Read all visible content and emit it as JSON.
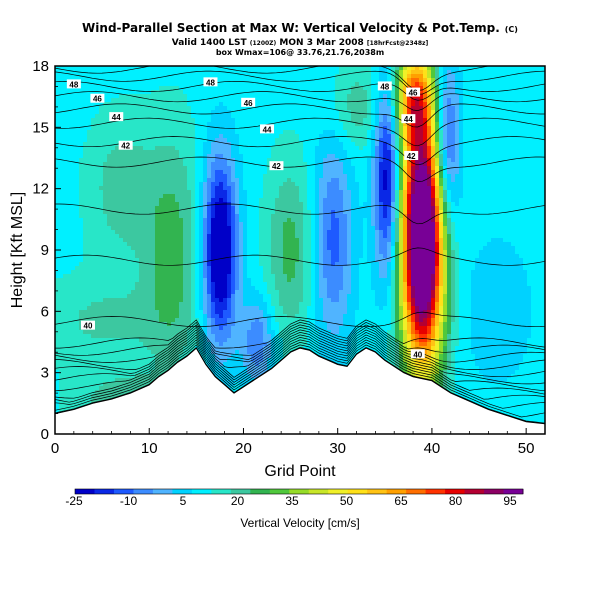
{
  "header": {
    "title": "Wind-Parallel Section at Max W: Vertical Velocity & Pot.Temp.",
    "title_badge": "(C)",
    "valid_prefix": "Valid 1400 LST",
    "valid_small1": "(1200Z)",
    "valid_mid": "MON 3 Mar 2008",
    "valid_small2": "[18hrFcst@2348z]",
    "box_line": "box Wmax=106@ 33.76,21.76,2038m"
  },
  "colorbar": {
    "label": "Vertical Velocity [cm/s]",
    "tick_labels": [
      "-25",
      "-10",
      "5",
      "20",
      "35",
      "50",
      "65",
      "80",
      "95"
    ],
    "colors": [
      "#0000c8",
      "#0a28e6",
      "#1e5aff",
      "#3c8cff",
      "#50b4ff",
      "#00d2ff",
      "#00f0ff",
      "#28e6c8",
      "#3cc8a0",
      "#32b450",
      "#50c83c",
      "#96dc28",
      "#c8e628",
      "#f0f028",
      "#ffe119",
      "#ffc314",
      "#ffa000",
      "#ff6e00",
      "#ff3200",
      "#e60000",
      "#b40032",
      "#8c0064",
      "#780096"
    ]
  },
  "chart_data": {
    "type": "heatmap",
    "title": "Wind-Parallel Section at Max W: Vertical Velocity & Pot.Temp.",
    "xlabel": "Grid Point",
    "ylabel": "Height [Kft MSL]",
    "xlim": [
      0,
      52
    ],
    "ylim": [
      0,
      18
    ],
    "x_ticks": [
      0,
      10,
      20,
      30,
      40,
      50
    ],
    "y_ticks": [
      0,
      3,
      6,
      9,
      12,
      15,
      18
    ],
    "colorbar_range": [
      -25,
      95
    ],
    "colorbar_interval": 5,
    "terrain_height": [
      [
        0,
        1.0
      ],
      [
        2,
        1.2
      ],
      [
        4,
        1.5
      ],
      [
        6,
        1.7
      ],
      [
        8,
        2.0
      ],
      [
        10,
        2.4
      ],
      [
        11,
        2.8
      ],
      [
        12,
        3.1
      ],
      [
        13,
        3.5
      ],
      [
        14,
        3.8
      ],
      [
        15,
        4.2
      ],
      [
        16,
        3.4
      ],
      [
        17,
        2.8
      ],
      [
        18,
        2.4
      ],
      [
        19,
        2.0
      ],
      [
        20,
        2.3
      ],
      [
        21,
        2.6
      ],
      [
        22,
        2.9
      ],
      [
        23,
        3.2
      ],
      [
        24,
        3.6
      ],
      [
        25,
        4.0
      ],
      [
        26,
        4.2
      ],
      [
        27,
        4.1
      ],
      [
        28,
        3.8
      ],
      [
        29,
        3.6
      ],
      [
        30,
        3.4
      ],
      [
        31,
        3.3
      ],
      [
        32,
        3.9
      ],
      [
        33,
        4.2
      ],
      [
        34,
        4.0
      ],
      [
        35,
        3.6
      ],
      [
        36,
        3.3
      ],
      [
        37,
        3.0
      ],
      [
        38,
        2.8
      ],
      [
        39,
        2.7
      ],
      [
        40,
        2.6
      ],
      [
        41,
        2.3
      ],
      [
        42,
        2.0
      ],
      [
        43,
        1.8
      ],
      [
        44,
        1.6
      ],
      [
        45,
        1.4
      ],
      [
        46,
        1.2
      ],
      [
        48,
        0.9
      ],
      [
        50,
        0.6
      ],
      [
        52,
        0.5
      ]
    ],
    "w_features": [
      {
        "x": 39,
        "y": 9.5,
        "sx": 1.6,
        "sy": 4.4,
        "amp": 108
      },
      {
        "x": 38,
        "y": 16.5,
        "sx": 1.4,
        "sy": 1.6,
        "amp": 40
      },
      {
        "x": 17.5,
        "y": 9.0,
        "sx": 1.3,
        "sy": 3.2,
        "amp": -40
      },
      {
        "x": 35.3,
        "y": 12.5,
        "sx": 1.0,
        "sy": 3.5,
        "amp": -34
      },
      {
        "x": 41.5,
        "y": 14.0,
        "sx": 1.0,
        "sy": 3.0,
        "amp": -30
      },
      {
        "x": 29.5,
        "y": 9.5,
        "sx": 1.5,
        "sy": 3.5,
        "amp": -20
      },
      {
        "x": 25.0,
        "y": 9.0,
        "sx": 1.8,
        "sy": 3.0,
        "amp": 14
      },
      {
        "x": 12.5,
        "y": 9.0,
        "sx": 2.2,
        "sy": 4.0,
        "amp": 14
      },
      {
        "x": 7.0,
        "y": 12.0,
        "sx": 2.5,
        "sy": 2.5,
        "amp": 10
      },
      {
        "x": 5.0,
        "y": 5.5,
        "sx": 5.0,
        "sy": 1.5,
        "amp": 8
      },
      {
        "x": 47,
        "y": 6.0,
        "sx": 3.0,
        "sy": 3.0,
        "amp": -6
      },
      {
        "x": 32.0,
        "y": 16.0,
        "sx": 2.0,
        "sy": 1.5,
        "amp": 10
      },
      {
        "x": 8.0,
        "y": 1.5,
        "sx": 4.0,
        "sy": 1.0,
        "amp": 12
      },
      {
        "x": 21.5,
        "y": 4.5,
        "sx": 1.2,
        "sy": 1.5,
        "amp": -18
      }
    ],
    "theta_contour_labels": [
      {
        "text": "48",
        "x": 2,
        "y": 17.1
      },
      {
        "text": "46",
        "x": 4.5,
        "y": 16.4
      },
      {
        "text": "44",
        "x": 6.5,
        "y": 15.5
      },
      {
        "text": "42",
        "x": 7.5,
        "y": 14.1
      },
      {
        "text": "40",
        "x": 3.5,
        "y": 5.3
      },
      {
        "text": "48",
        "x": 16.5,
        "y": 17.2
      },
      {
        "text": "46",
        "x": 20.5,
        "y": 16.2
      },
      {
        "text": "44",
        "x": 22.5,
        "y": 14.9
      },
      {
        "text": "42",
        "x": 23.5,
        "y": 13.1
      },
      {
        "text": "48",
        "x": 35,
        "y": 17.0
      },
      {
        "text": "46",
        "x": 38,
        "y": 16.7
      },
      {
        "text": "44",
        "x": 37.5,
        "y": 15.4
      },
      {
        "text": "42",
        "x": 37.8,
        "y": 13.6
      },
      {
        "text": "40",
        "x": 38.5,
        "y": 3.9
      }
    ]
  }
}
